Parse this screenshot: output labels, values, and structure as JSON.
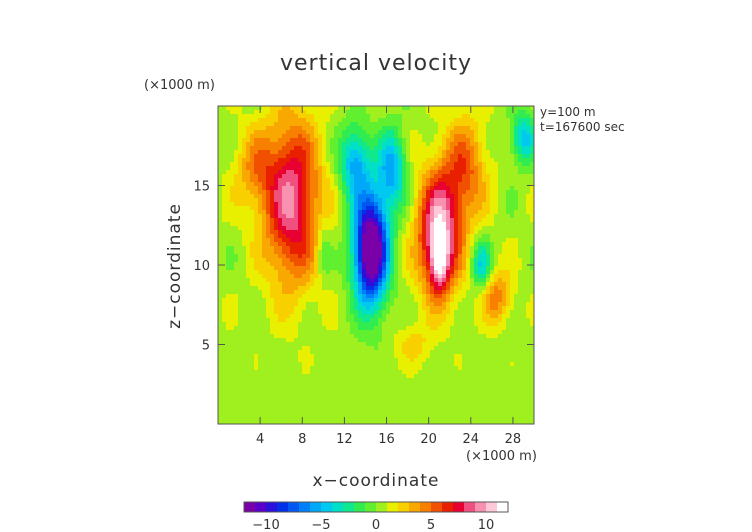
{
  "chart_data": {
    "type": "heatmap",
    "title": "vertical velocity",
    "xlabel": "x−coordinate",
    "ylabel": "z−coordinate",
    "x_unit": "(×1000 m)",
    "y_unit": "(×1000 m)",
    "annotations": [
      "y=100 m",
      "t=167600 sec"
    ],
    "xlim": [
      0,
      30
    ],
    "ylim": [
      0,
      20
    ],
    "x_ticks": [
      4,
      8,
      12,
      16,
      20,
      24,
      28
    ],
    "x_tick_labels": [
      "4",
      "8",
      "12",
      "16",
      "20",
      "24",
      "28"
    ],
    "y_ticks": [
      5,
      10,
      15
    ],
    "y_tick_labels": [
      "5",
      "10",
      "15"
    ],
    "colorbar": {
      "range": [
        -12,
        12
      ],
      "ticks": [
        -10,
        -5,
        0,
        5,
        10
      ],
      "tick_labels": [
        "−10",
        "−5",
        "0",
        "5",
        "10"
      ],
      "colors": [
        "#7a00a8",
        "#5a00c8",
        "#2a10d8",
        "#0030e8",
        "#0058f0",
        "#0080f8",
        "#00a8f8",
        "#00c8f0",
        "#00e0c8",
        "#10e890",
        "#30ec50",
        "#60f030",
        "#a0f020",
        "#e8f000",
        "#f8d000",
        "#f8a800",
        "#f88000",
        "#f05000",
        "#e82000",
        "#e80030",
        "#f05080",
        "#f890b0",
        "#ffc8d8",
        "#ffffff"
      ]
    },
    "field_features": [
      {
        "kind": "updraft",
        "x": 7,
        "z": 14,
        "sx": 2.6,
        "sz": 5.0,
        "amp": 8.5
      },
      {
        "kind": "updraft",
        "x": 3.5,
        "z": 16,
        "sx": 2.0,
        "sz": 2.5,
        "amp": 3.0
      },
      {
        "kind": "updraft",
        "x": 21,
        "z": 12,
        "sx": 2.0,
        "sz": 3.8,
        "amp": 10.0
      },
      {
        "kind": "updraft",
        "x": 21,
        "z": 10.2,
        "sx": 0.8,
        "sz": 1.8,
        "amp": 5.5
      },
      {
        "kind": "updraft",
        "x": 23.5,
        "z": 16,
        "sx": 2.0,
        "sz": 3.2,
        "amp": 4.5
      },
      {
        "kind": "updraft",
        "x": 26.5,
        "z": 8,
        "sx": 1.4,
        "sz": 1.6,
        "amp": 4.0
      },
      {
        "kind": "downdraft",
        "x": 14.5,
        "z": 11,
        "sx": 1.6,
        "sz": 3.4,
        "amp": -15.0
      },
      {
        "kind": "downdraft",
        "x": 13,
        "z": 16.5,
        "sx": 1.4,
        "sz": 2.2,
        "amp": -6.0
      },
      {
        "kind": "downdraft",
        "x": 16.5,
        "z": 16,
        "sx": 1.3,
        "sz": 2.4,
        "amp": -6.0
      },
      {
        "kind": "downdraft",
        "x": 25,
        "z": 10,
        "sx": 0.9,
        "sz": 1.5,
        "amp": -4.5
      },
      {
        "kind": "downdraft",
        "x": 29,
        "z": 18,
        "sx": 1.2,
        "sz": 1.6,
        "amp": -5.0
      },
      {
        "kind": "downdraft",
        "x": 10,
        "z": 11,
        "sx": 0.7,
        "sz": 2.0,
        "amp": -2.0
      },
      {
        "kind": "updraft",
        "x": 18.5,
        "z": 5,
        "sx": 1.5,
        "sz": 1.2,
        "amp": 2.0
      }
    ]
  }
}
